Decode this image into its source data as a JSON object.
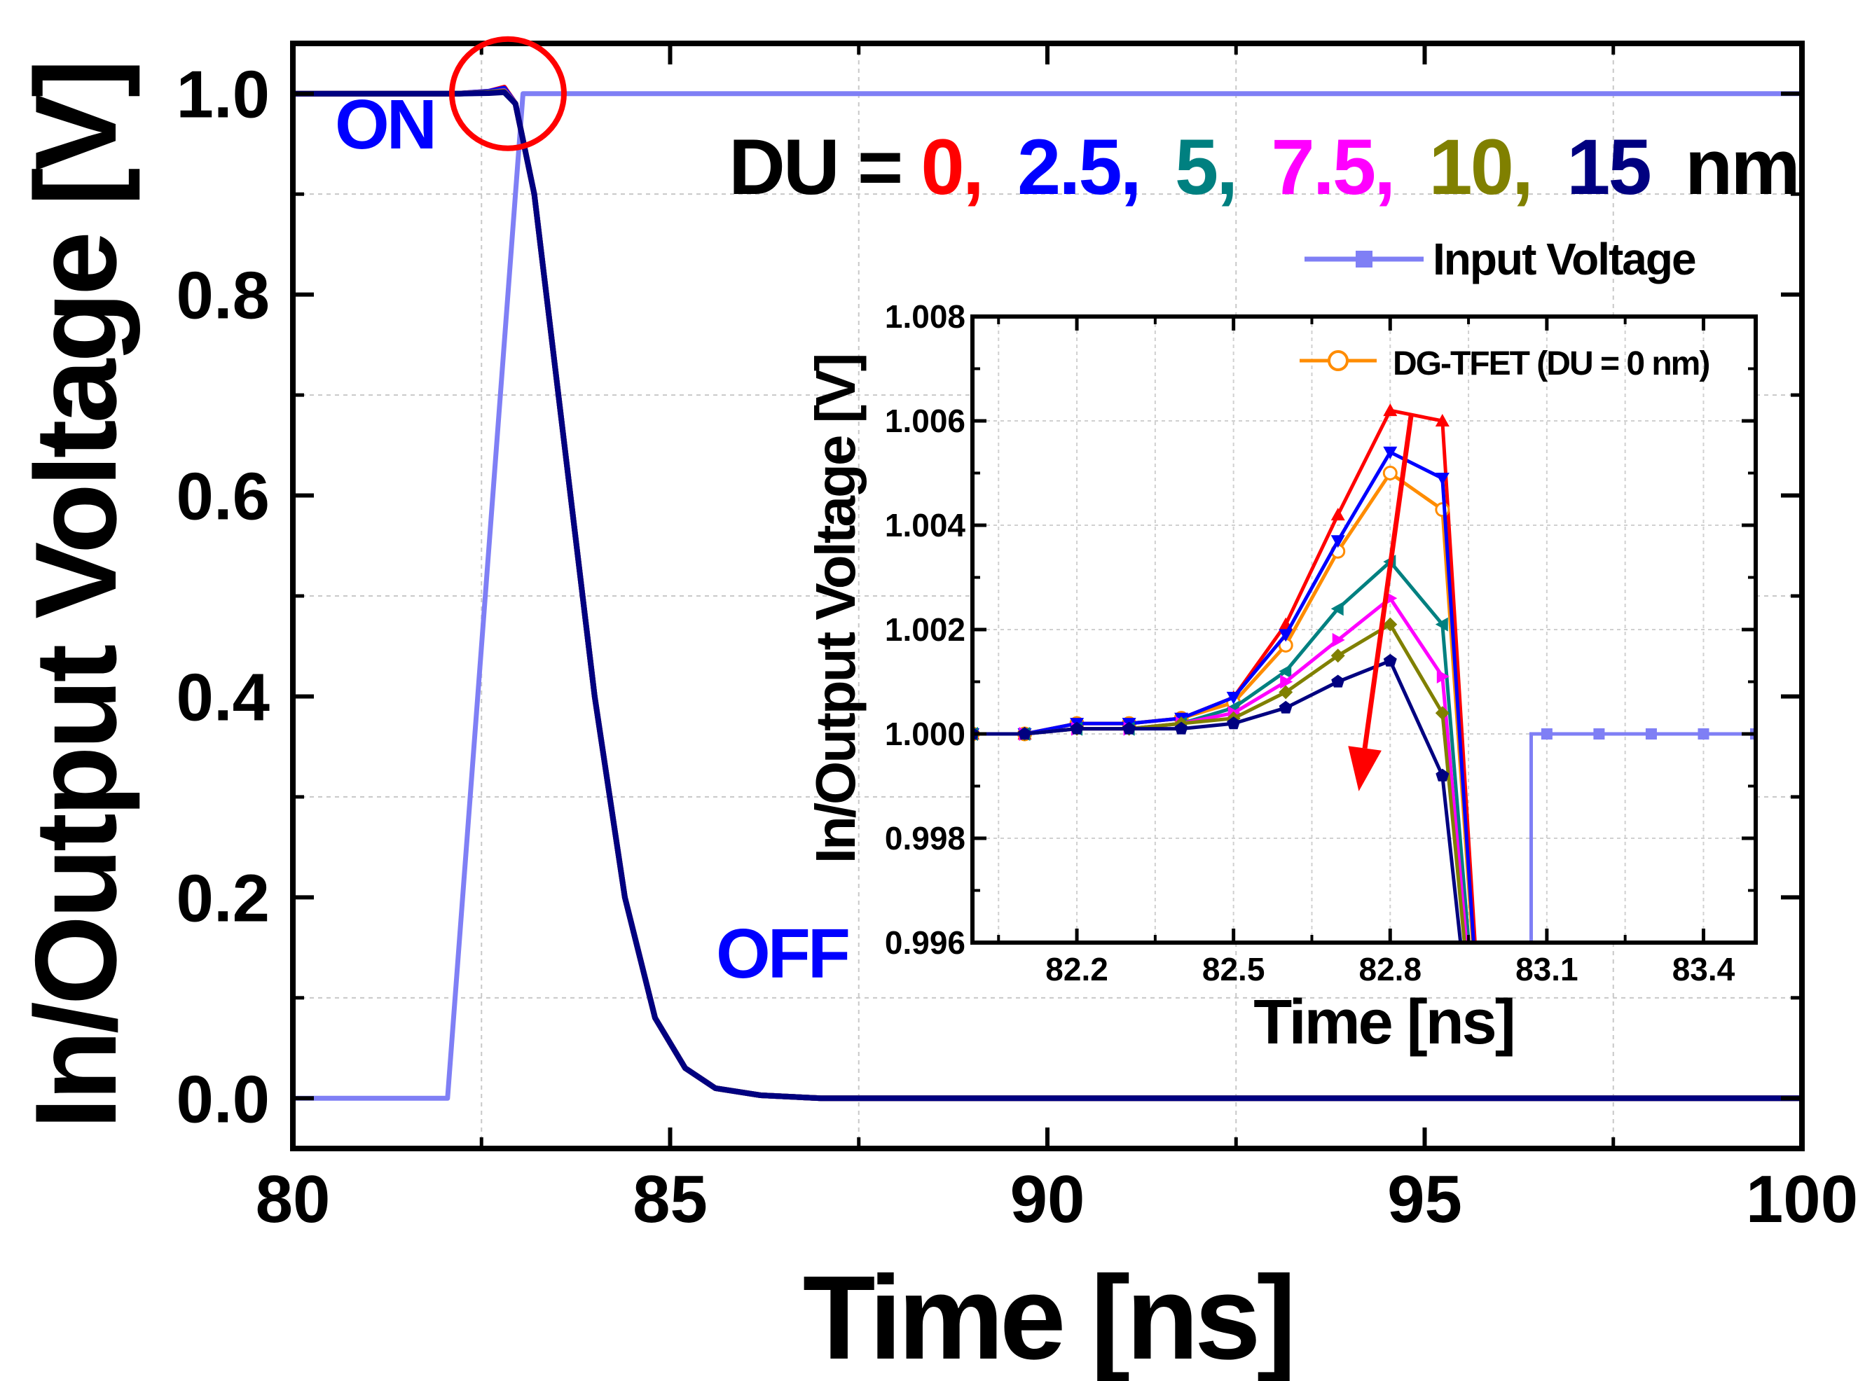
{
  "chart_data": [
    {
      "id": "main",
      "type": "line",
      "xlabel": "Time [ns]",
      "ylabel": "In/Output Voltage [V]",
      "xlim": [
        80,
        100
      ],
      "ylim": [
        -0.05,
        1.05
      ],
      "xticks": [
        80,
        85,
        90,
        95,
        100
      ],
      "xtick_labels": [
        "80",
        "85",
        "90",
        "95",
        "100"
      ],
      "yticks": [
        0.0,
        0.2,
        0.4,
        0.6,
        0.8,
        1.0
      ],
      "ytick_labels": [
        "0.0",
        "0.2",
        "0.4",
        "0.6",
        "0.8",
        "1.0"
      ],
      "grid": true,
      "input_series": {
        "name": "Input Voltage",
        "color": "#7f7ff5",
        "x": [
          80,
          82.05,
          83.05,
          100
        ],
        "y": [
          0,
          0,
          1,
          1
        ]
      },
      "output_series": [
        {
          "name": "DU = 0 nm",
          "color": "#ff0000",
          "x": [
            80,
            82.2,
            82.6,
            82.8,
            82.95,
            83.2,
            83.6,
            84.0,
            84.4,
            84.8,
            85.2,
            85.6,
            86.2,
            87.0,
            100
          ],
          "y": [
            1.0,
            1.0,
            1.002,
            1.006,
            0.99,
            0.9,
            0.65,
            0.4,
            0.2,
            0.08,
            0.03,
            0.01,
            0.003,
            0.0,
            0.0
          ]
        },
        {
          "name": "DU = 2.5 nm",
          "color": "#0000ff",
          "x": [
            80,
            82.2,
            82.6,
            82.8,
            82.95,
            83.2,
            83.6,
            84.0,
            84.4,
            84.8,
            85.2,
            85.6,
            86.2,
            87.0,
            100
          ],
          "y": [
            1.0,
            1.0,
            1.002,
            1.005,
            0.99,
            0.9,
            0.65,
            0.4,
            0.2,
            0.08,
            0.03,
            0.01,
            0.003,
            0.0,
            0.0
          ]
        },
        {
          "name": "DU = 5 nm",
          "color": "#008080",
          "x": [
            80,
            82.2,
            82.6,
            82.8,
            82.95,
            83.2,
            83.6,
            84.0,
            84.4,
            84.8,
            85.2,
            85.6,
            86.2,
            87.0,
            100
          ],
          "y": [
            1.0,
            1.0,
            1.001,
            1.003,
            0.99,
            0.9,
            0.65,
            0.4,
            0.2,
            0.08,
            0.03,
            0.01,
            0.003,
            0.0,
            0.0
          ]
        },
        {
          "name": "DU = 7.5 nm",
          "color": "#ff00ff",
          "x": [
            80,
            82.2,
            82.6,
            82.8,
            82.95,
            83.2,
            83.6,
            84.0,
            84.4,
            84.8,
            85.2,
            85.6,
            86.2,
            87.0,
            100
          ],
          "y": [
            1.0,
            1.0,
            1.001,
            1.0025,
            0.99,
            0.9,
            0.65,
            0.4,
            0.2,
            0.08,
            0.03,
            0.01,
            0.003,
            0.0,
            0.0
          ]
        },
        {
          "name": "DU = 10 nm",
          "color": "#808000",
          "x": [
            80,
            82.2,
            82.6,
            82.8,
            82.95,
            83.2,
            83.6,
            84.0,
            84.4,
            84.8,
            85.2,
            85.6,
            86.2,
            87.0,
            100
          ],
          "y": [
            1.0,
            1.0,
            1.001,
            1.002,
            0.99,
            0.9,
            0.65,
            0.4,
            0.2,
            0.08,
            0.03,
            0.01,
            0.003,
            0.0,
            0.0
          ]
        },
        {
          "name": "DU = 15 nm",
          "color": "#000080",
          "x": [
            80,
            82.2,
            82.6,
            82.8,
            82.95,
            83.2,
            83.6,
            84.0,
            84.4,
            84.8,
            85.2,
            85.6,
            86.2,
            87.0,
            100
          ],
          "y": [
            1.0,
            1.0,
            1.0005,
            1.0014,
            0.99,
            0.9,
            0.65,
            0.4,
            0.2,
            0.08,
            0.03,
            0.01,
            0.003,
            0.0,
            0.0
          ]
        }
      ],
      "annotations": {
        "on_label": "ON",
        "off_label": "OFF",
        "du_prefix": "DU = ",
        "du_values": [
          {
            "text": "0,",
            "color": "#ff0000"
          },
          {
            "text": "2.5,",
            "color": "#0000ff"
          },
          {
            "text": "5,",
            "color": "#008080"
          },
          {
            "text": "7.5,",
            "color": "#ff00ff"
          },
          {
            "text": "10,",
            "color": "#808000"
          },
          {
            "text": "15",
            "color": "#000080"
          }
        ],
        "du_suffix": "nm",
        "legend_label": "Input Voltage",
        "circle_center": [
          82.85,
          1.0
        ],
        "on_color": "#0000ff",
        "off_color": "#0000ff",
        "circle_color": "#ff0000"
      }
    },
    {
      "id": "inset",
      "type": "line",
      "xlabel": "Time [ns]",
      "ylabel": "In/Output Voltage [V]",
      "xlim": [
        82.0,
        83.5
      ],
      "ylim": [
        0.996,
        1.008
      ],
      "xticks": [
        82.2,
        82.5,
        82.8,
        83.1,
        83.4
      ],
      "xtick_labels": [
        "82.2",
        "82.5",
        "82.8",
        "83.1",
        "83.4"
      ],
      "yticks": [
        0.996,
        0.998,
        1.0,
        1.002,
        1.004,
        1.006,
        1.008
      ],
      "ytick_labels": [
        "0.996",
        "0.998",
        "1.000",
        "1.002",
        "1.004",
        "1.006",
        "1.008"
      ],
      "grid": true,
      "legend_label": "DG-TFET (DU = 0 nm)",
      "x": [
        82.0,
        82.1,
        82.2,
        82.3,
        82.4,
        82.5,
        82.6,
        82.7,
        82.8,
        82.9,
        83.0
      ],
      "series": [
        {
          "name": "DU = 0 nm (red)",
          "color": "#ff0000",
          "marker": "triangle-up",
          "y": [
            1.0,
            1.0,
            1.0002,
            1.0002,
            1.0003,
            1.0007,
            1.0021,
            1.0042,
            1.0062,
            1.006,
            0.99
          ]
        },
        {
          "name": "DG-TFET (DU = 0 nm)",
          "color": "#ff8c00",
          "marker": "open-circle",
          "y": [
            1.0,
            1.0,
            1.0002,
            1.0002,
            1.0003,
            1.0006,
            1.0017,
            1.0035,
            1.005,
            1.0043,
            0.99
          ]
        },
        {
          "name": "DU = 2.5 nm",
          "color": "#0000ff",
          "marker": "triangle-down",
          "y": [
            1.0,
            1.0,
            1.0002,
            1.0002,
            1.0003,
            1.0007,
            1.0019,
            1.0037,
            1.0054,
            1.0049,
            0.99
          ]
        },
        {
          "name": "DU = 5 nm",
          "color": "#008080",
          "marker": "triangle-left",
          "y": [
            1.0,
            1.0,
            1.0001,
            1.0001,
            1.0002,
            1.0005,
            1.0012,
            1.0024,
            1.0033,
            1.0021,
            0.99
          ]
        },
        {
          "name": "DU = 7.5 nm",
          "color": "#ff00ff",
          "marker": "triangle-right",
          "y": [
            1.0,
            1.0,
            1.0001,
            1.0001,
            1.0002,
            1.0004,
            1.001,
            1.0018,
            1.0026,
            1.0011,
            0.99
          ]
        },
        {
          "name": "DU = 10 nm",
          "color": "#808000",
          "marker": "diamond",
          "y": [
            1.0,
            1.0,
            1.0001,
            1.0001,
            1.0002,
            1.0003,
            1.0008,
            1.0015,
            1.0021,
            1.0004,
            0.99
          ]
        },
        {
          "name": "DU = 15 nm",
          "color": "#000080",
          "marker": "pentagon",
          "y": [
            1.0,
            1.0,
            1.0001,
            1.0001,
            1.0001,
            1.0002,
            1.0005,
            1.001,
            1.0014,
            0.9992,
            0.99
          ]
        }
      ],
      "input_series": {
        "name": "Input Voltage",
        "color": "#7f7ff5",
        "x": [
          83.07,
          83.07,
          83.1,
          83.2,
          83.3,
          83.4,
          83.5
        ],
        "y": [
          0.99,
          1.0,
          1.0,
          1.0,
          1.0,
          1.0,
          1.0
        ]
      },
      "arrow": {
        "from": [
          82.84,
          1.0061
        ],
        "to": [
          82.74,
          0.9989
        ],
        "color": "#ff0000"
      }
    }
  ]
}
